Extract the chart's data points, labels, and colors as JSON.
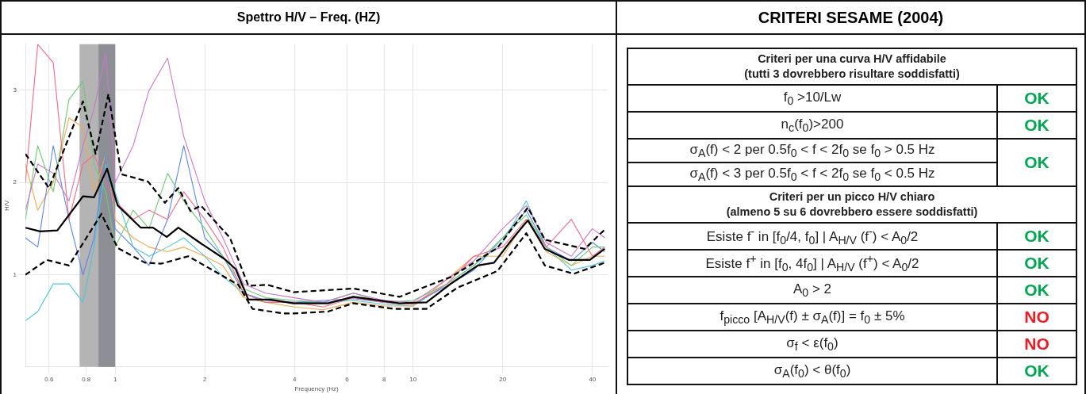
{
  "chart_data": [
    {
      "type": "line",
      "title": "Spettro H/V – Freq. (HZ)",
      "xlabel": "Frequency (Hz)",
      "ylabel": "H/V",
      "log": "x",
      "xlim": [
        0.5,
        45
      ],
      "xticks": [
        0.6,
        0.8,
        1,
        2,
        4,
        6,
        8,
        10,
        20,
        40
      ],
      "ylim": [
        0,
        3.5
      ],
      "yticks": [
        1,
        2,
        3
      ],
      "grid": true,
      "legend": false,
      "marker": "none",
      "bands": [
        {
          "axis": "x",
          "from": 0.76,
          "to": 1.0,
          "color": "#b4b4b4"
        },
        {
          "axis": "x",
          "from": 0.88,
          "to": 1.0,
          "color": "#8e8e96"
        }
      ],
      "series": [
        {
          "color": "#f06a84",
          "x": [
            0.5,
            0.55,
            0.62,
            0.7,
            0.78,
            0.85,
            0.93,
            1.0,
            1.15,
            1.3,
            1.5,
            1.7,
            2.0,
            2.3,
            2.7,
            3.2,
            4,
            5,
            6.3,
            8,
            10,
            13,
            16,
            20,
            24,
            28,
            34,
            40,
            44
          ],
          "values": [
            2.0,
            3.5,
            3.3,
            1.6,
            2.2,
            2.3,
            2.0,
            1.8,
            1.6,
            1.7,
            1.6,
            1.9,
            1.6,
            1.3,
            0.8,
            0.7,
            0.7,
            0.65,
            0.75,
            0.7,
            0.68,
            0.9,
            1.2,
            1.3,
            1.6,
            1.3,
            1.6,
            1.2,
            1.3
          ]
        },
        {
          "color": "#c878c8",
          "x": [
            0.5,
            0.55,
            0.62,
            0.7,
            0.78,
            0.85,
            0.93,
            1.0,
            1.15,
            1.3,
            1.5,
            1.7,
            2.0,
            2.3,
            2.7,
            3.2,
            4,
            5,
            6.3,
            8,
            10,
            13,
            16,
            20,
            24,
            28,
            34,
            40,
            44
          ],
          "values": [
            1.7,
            2.2,
            2.1,
            1.8,
            2.4,
            2.8,
            3.4,
            2.0,
            2.4,
            3.0,
            3.35,
            2.5,
            1.8,
            1.4,
            0.9,
            0.8,
            0.75,
            0.7,
            0.8,
            0.72,
            0.7,
            0.95,
            1.15,
            1.5,
            1.75,
            1.35,
            1.2,
            1.5,
            1.4
          ]
        },
        {
          "color": "#70c878",
          "x": [
            0.5,
            0.55,
            0.62,
            0.7,
            0.78,
            0.85,
            0.93,
            1.0,
            1.15,
            1.3,
            1.5,
            1.7,
            2.0,
            2.3,
            2.7,
            3.2,
            4,
            5,
            6.3,
            8,
            10,
            13,
            16,
            20,
            24,
            28,
            34,
            40,
            44
          ],
          "values": [
            1.6,
            2.4,
            1.9,
            2.9,
            3.1,
            2.2,
            1.9,
            1.3,
            1.7,
            1.5,
            2.1,
            1.8,
            1.5,
            1.2,
            0.85,
            0.75,
            0.72,
            0.7,
            0.8,
            0.7,
            0.72,
            0.9,
            1.1,
            1.4,
            1.65,
            1.3,
            1.1,
            1.3,
            1.3
          ]
        },
        {
          "color": "#6088e0",
          "x": [
            0.5,
            0.55,
            0.62,
            0.7,
            0.78,
            0.85,
            0.93,
            1.0,
            1.15,
            1.3,
            1.5,
            1.7,
            2.0,
            2.3,
            2.7,
            3.2,
            4,
            5,
            6.3,
            8,
            10,
            13,
            16,
            20,
            24,
            28,
            34,
            40,
            44
          ],
          "values": [
            1.4,
            1.3,
            2.4,
            1.6,
            1.0,
            1.4,
            2.3,
            1.5,
            1.3,
            1.1,
            1.6,
            2.4,
            1.4,
            1.2,
            0.8,
            0.72,
            0.7,
            0.72,
            0.74,
            0.7,
            0.68,
            0.88,
            1.05,
            1.4,
            1.7,
            1.3,
            1.15,
            1.35,
            1.25
          ]
        },
        {
          "color": "#f0a850",
          "x": [
            0.5,
            0.55,
            0.62,
            0.7,
            0.78,
            0.85,
            0.93,
            1.0,
            1.15,
            1.3,
            1.5,
            1.7,
            2.0,
            2.3,
            2.7,
            3.2,
            4,
            5,
            6.3,
            8,
            10,
            13,
            16,
            20,
            24,
            28,
            34,
            40,
            44
          ],
          "values": [
            2.2,
            1.7,
            2.0,
            2.7,
            2.6,
            1.9,
            2.3,
            1.6,
            1.4,
            1.3,
            1.25,
            1.3,
            1.2,
            1.1,
            0.75,
            0.7,
            0.65,
            0.62,
            0.7,
            0.66,
            0.66,
            0.95,
            1.2,
            1.2,
            1.6,
            1.25,
            1.1,
            1.2,
            1.2
          ]
        },
        {
          "color": "#50c4d4",
          "x": [
            0.5,
            0.55,
            0.62,
            0.7,
            0.78,
            0.85,
            0.93,
            1.0,
            1.15,
            1.3,
            1.5,
            1.7,
            2.0,
            2.3,
            2.7,
            3.2,
            4,
            5,
            6.3,
            8,
            10,
            13,
            16,
            20,
            24,
            28,
            34,
            40,
            44
          ],
          "values": [
            0.5,
            0.6,
            0.9,
            0.9,
            0.7,
            1.3,
            2.2,
            1.9,
            1.3,
            1.2,
            1.3,
            1.4,
            1.2,
            0.98,
            0.8,
            0.7,
            0.7,
            0.7,
            0.72,
            0.68,
            0.66,
            0.9,
            1.1,
            1.35,
            1.8,
            1.3,
            1.05,
            1.1,
            1.15
          ]
        },
        {
          "color": "#000000",
          "line_style": "solid",
          "x": [
            0.5,
            0.56,
            0.64,
            0.78,
            0.85,
            0.94,
            1.02,
            1.22,
            1.34,
            1.49,
            1.63,
            1.94,
            2.33,
            2.54,
            2.8,
            3.31,
            3.97,
            5.18,
            6.3,
            7.36,
            9.0,
            11.1,
            13.5,
            16.5,
            18.7,
            21.7,
            24.3,
            27.7,
            33.4,
            39.2,
            44
          ],
          "values": [
            1.51,
            1.47,
            1.48,
            1.85,
            1.84,
            2.15,
            1.75,
            1.51,
            1.51,
            1.41,
            1.51,
            1.34,
            1.17,
            1.06,
            0.73,
            0.73,
            0.69,
            0.69,
            0.76,
            0.73,
            0.69,
            0.7,
            0.91,
            1.1,
            1.13,
            1.4,
            1.59,
            1.28,
            1.16,
            1.16,
            1.28
          ]
        },
        {
          "color": "#000000",
          "line_style": "dashed",
          "x": [
            0.5,
            0.6,
            0.78,
            0.86,
            0.95,
            1.05,
            1.29,
            1.47,
            1.63,
            1.79,
            1.94,
            2.43,
            2.8,
            3.25,
            3.97,
            6.3,
            9.0,
            13.5,
            19.2,
            24.3,
            27.7,
            37.7,
            44
          ],
          "values": [
            2.31,
            1.94,
            2.88,
            2.31,
            2.96,
            2.09,
            2.01,
            1.78,
            1.94,
            1.69,
            1.75,
            1.4,
            0.88,
            0.89,
            0.81,
            0.85,
            0.76,
            0.98,
            1.29,
            1.73,
            1.38,
            1.28,
            1.49
          ]
        },
        {
          "color": "#000000",
          "line_style": "dashed",
          "x": [
            0.5,
            0.59,
            0.7,
            0.9,
            1.02,
            1.26,
            1.43,
            1.76,
            2.15,
            2.59,
            2.89,
            3.67,
            3.97,
            5.18,
            6.3,
            8.6,
            11.1,
            14.1,
            19.2,
            24,
            27.7,
            34.6,
            44
          ],
          "values": [
            1.0,
            1.16,
            1.1,
            1.66,
            1.29,
            1.13,
            1.12,
            1.2,
            1.04,
            0.89,
            0.63,
            0.58,
            0.58,
            0.6,
            0.69,
            0.63,
            0.63,
            0.86,
            1.04,
            1.45,
            1.1,
            1.01,
            1.13
          ]
        }
      ]
    },
    {
      "type": "other",
      "title": "CRITERI SESAME (2004)",
      "annotations": [
        "Criteri per una curva H/V affidabile",
        "(tutti 3 dovrebbero risultare soddisfatti)",
        "f$_{0}$ >10/Lw",
        "OK",
        "n$_{c}$(f$_{0}$)>200",
        "OK",
        "σ$_{A}$(f) < 2 per 0.5f$_{0}$ < f < 2f$_{0}$ se f$_{0}$ > 0.5 Hz",
        "σ$_{A}$(f) < 3 per 0.5f$_{0}$ < f < 2f$_{0}$ se f$_{0}$ < 0.5 Hz",
        "OK",
        "Criteri per un picco H/V chiaro",
        "(almeno 5 su 6 dovrebbero essere soddisfatti)",
        "Esiste f$^{-}$ in [f$_{0}$/4, f$_{0}$] | A$_{H/V}$ (f$^{-}$) < A$_{0}$/2",
        "OK",
        "Esiste f$^{+}$ in [f$_{0}$, 4f$_{0}$] | A$_{H/V}$ (f$^{+}$) < A$_{0}$/2",
        "OK",
        "A$_{0}$ > 2",
        "OK",
        "f$_{picco}$ [A$_{H/V}$(f) ± σ$_{A}$(f)] = f$_{0}$ ± 5%",
        "NO",
        "σ$_{f}$ < ε(f$_{0}$)",
        "NO",
        "σ$_{A}$(f$_{0}$) < θ(f$_{0}$)",
        "OK"
      ],
      "colors": [
        null,
        null,
        null,
        "#00a651",
        null,
        "#00a651",
        null,
        null,
        "#00a651",
        null,
        null,
        null,
        "#00a651",
        null,
        "#00a651",
        null,
        "#00a651",
        null,
        "#ed1c24",
        null,
        "#ed1c24",
        null,
        "#00a651"
      ]
    }
  ]
}
